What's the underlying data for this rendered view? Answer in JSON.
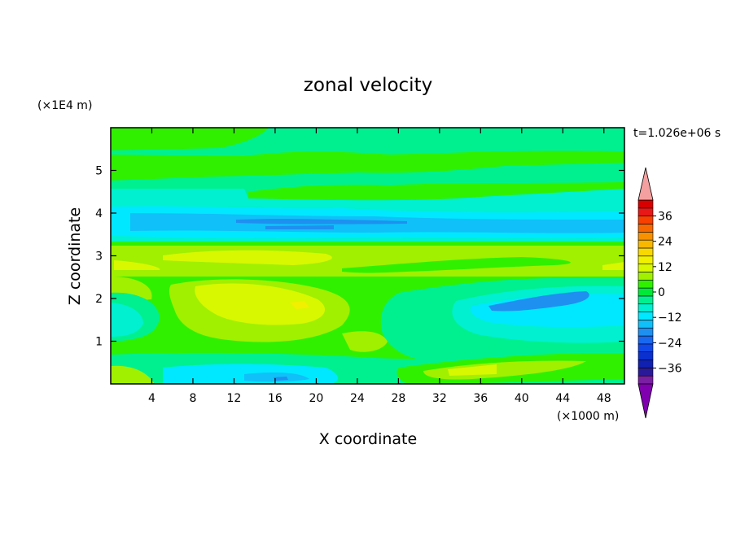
{
  "chart_data": {
    "type": "heatmap",
    "title": "zonal velocity",
    "xlabel": "X coordinate",
    "ylabel": "Z coordinate",
    "x_unit": "(×1000 m)",
    "y_unit": "(×1E4 m)",
    "time_label": "t=1.026e+06 s",
    "xlim": [
      0,
      50
    ],
    "ylim": [
      0,
      6
    ],
    "xticks": [
      4,
      8,
      12,
      16,
      20,
      24,
      28,
      32,
      36,
      40,
      44,
      48
    ],
    "yticks": [
      1,
      2,
      3,
      4,
      5
    ],
    "xtick_labels": [
      "4",
      "8",
      "12",
      "16",
      "20",
      "24",
      "28",
      "32",
      "36",
      "40",
      "44",
      "48"
    ],
    "ytick_labels": [
      "1",
      "2",
      "3",
      "4",
      "5"
    ],
    "colorbar": {
      "levels": [
        -42,
        -39,
        -36,
        -33,
        -30,
        -27,
        -24,
        -21,
        -18,
        -15,
        -12,
        -9,
        -6,
        -3,
        0,
        3,
        6,
        9,
        12,
        15,
        18,
        21,
        24,
        27,
        30,
        33,
        36,
        39,
        42
      ],
      "tick_values": [
        36,
        24,
        12,
        0,
        -12,
        -24,
        -36
      ],
      "tick_labels": [
        "36",
        "24",
        "12",
        "0",
        "−12",
        "−24",
        "−36"
      ],
      "colors": [
        "#7a1fa2",
        "#2a1a9a",
        "#1020b0",
        "#0a30d0",
        "#1048e8",
        "#1868f0",
        "#1e90f0",
        "#10c0f8",
        "#00e8ff",
        "#00f0d0",
        "#00f090",
        "#00e838",
        "#30f000",
        "#a0f000",
        "#d8f800",
        "#f0f000",
        "#f8d800",
        "#f8b800",
        "#f89000",
        "#f86800",
        "#f84000",
        "#e81818",
        "#d80000"
      ],
      "over_color": "#f4a0a0",
      "under_color": "#8000b0"
    }
  }
}
